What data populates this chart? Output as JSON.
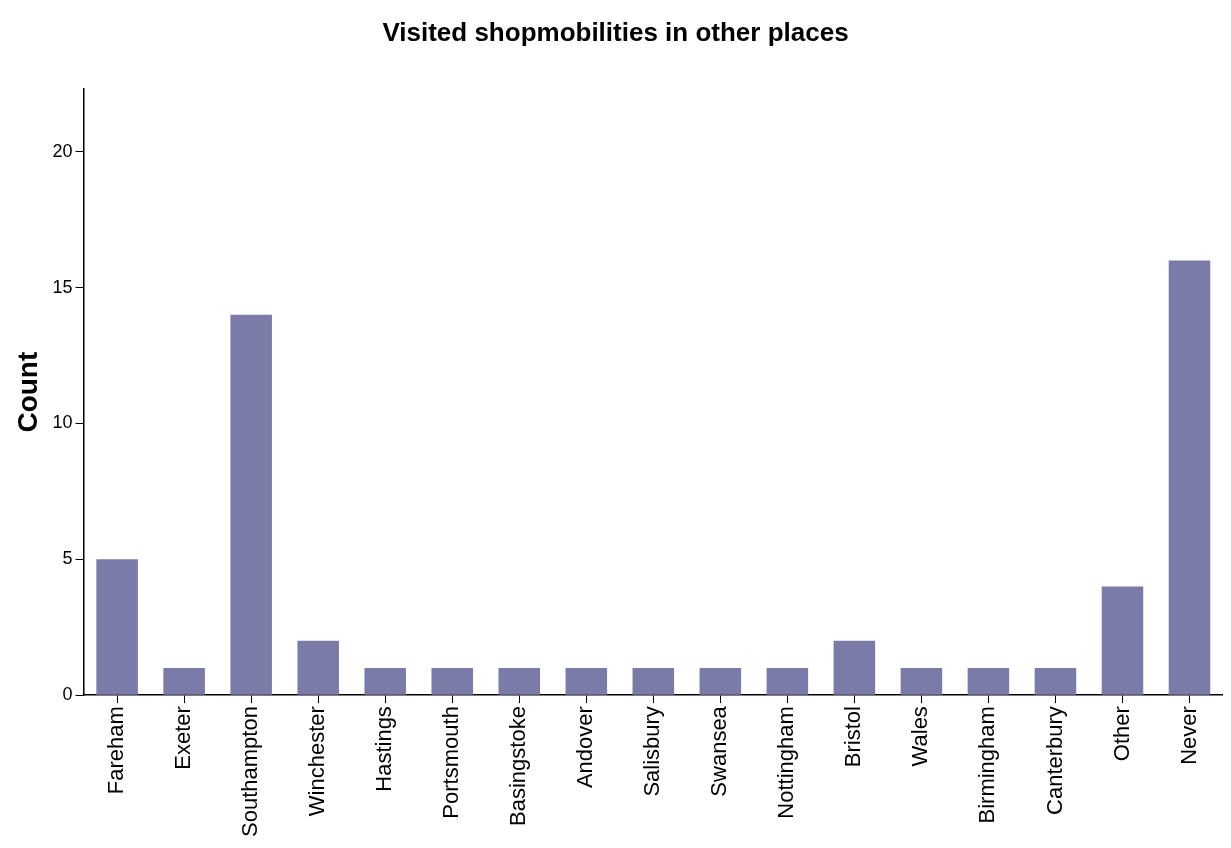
{
  "chart_data": {
    "type": "bar",
    "title": "Visited shopmobilities in other places",
    "ylabel": "Count",
    "categories": [
      "Fareham",
      "Exeter",
      "Southampton",
      "Winchester",
      "Hastings",
      "Portsmouth",
      "Basingstoke",
      "Andover",
      "Salisbury",
      "Swansea",
      "Nottingham",
      "Bristol",
      "Wales",
      "Birmingham",
      "Canterbury",
      "Other",
      "Never"
    ],
    "values": [
      5,
      1,
      14,
      2,
      1,
      1,
      1,
      1,
      1,
      1,
      1,
      2,
      1,
      1,
      1,
      4,
      16
    ],
    "color": "#7b7ba8",
    "ylim": [
      0,
      22.3
    ],
    "yticks": [
      0,
      5,
      10,
      15,
      20
    ],
    "grid": false,
    "legend": false
  }
}
